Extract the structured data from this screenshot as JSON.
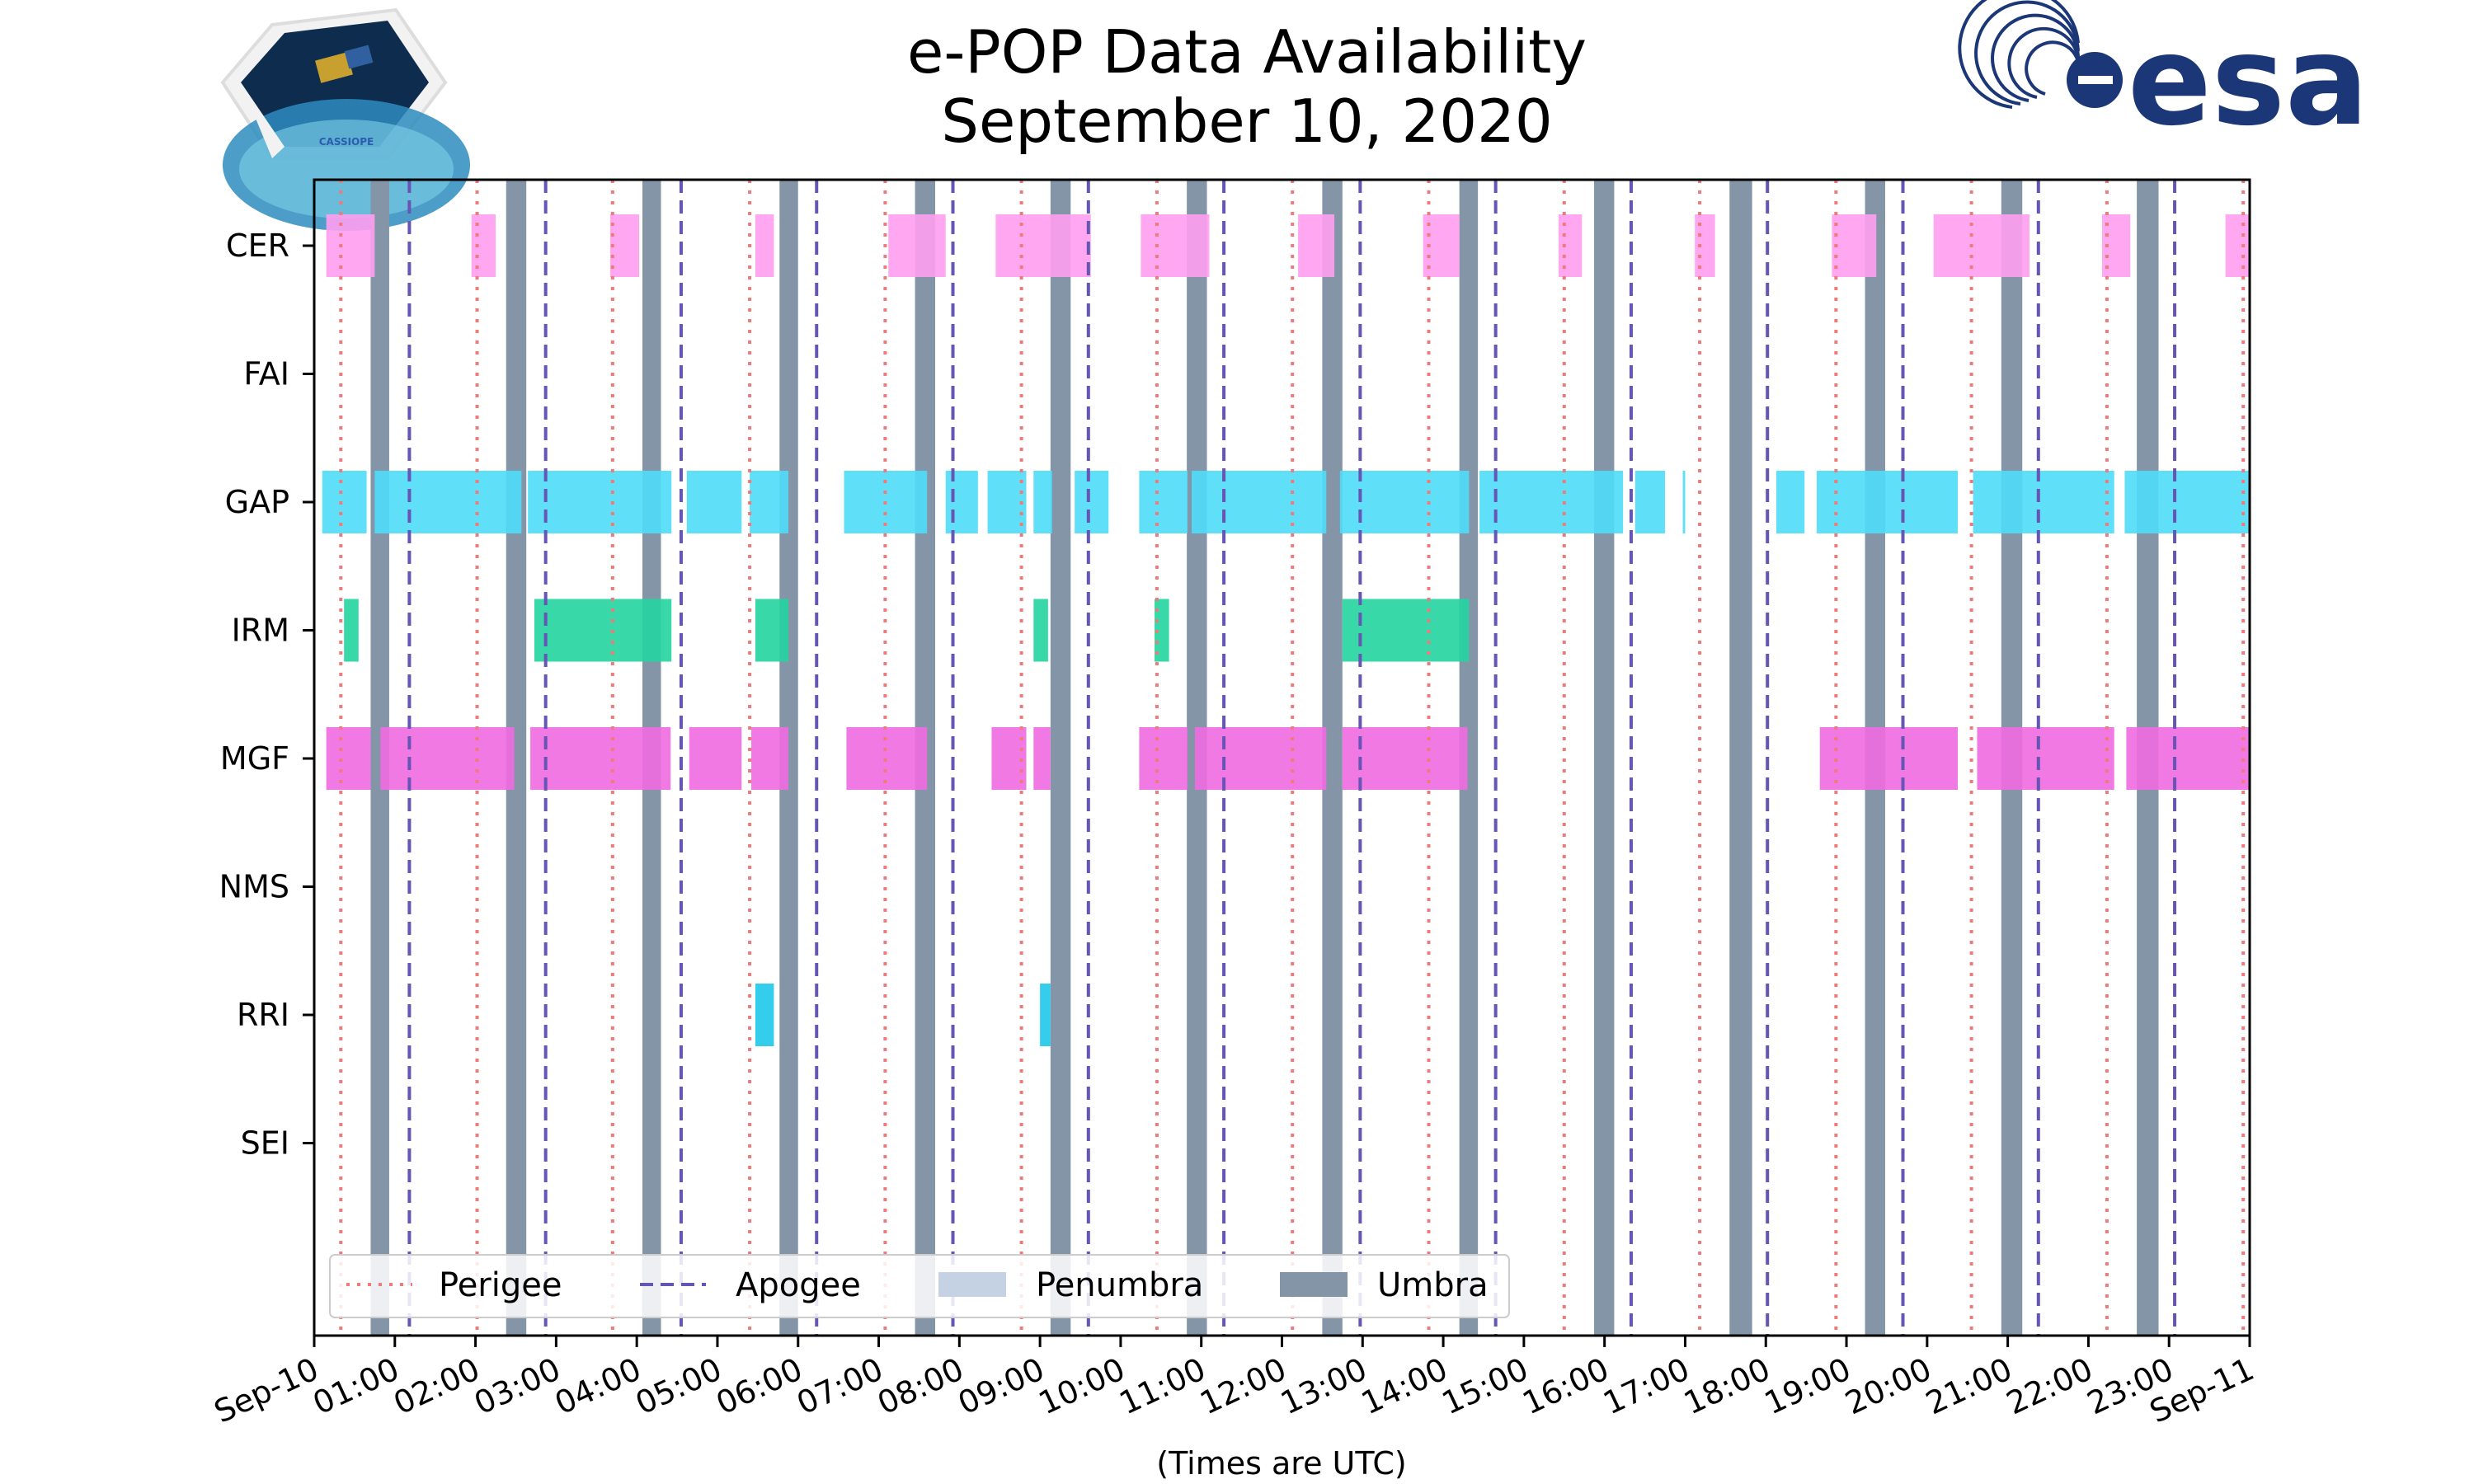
{
  "chart_data": {
    "type": "timeline",
    "title": [
      "e-POP Data Availability",
      "September 10, 2020"
    ],
    "xlabel": "(Times are UTC)",
    "x_ticks": [
      "Sep-10",
      "01:00",
      "02:00",
      "03:00",
      "04:00",
      "05:00",
      "06:00",
      "07:00",
      "08:00",
      "09:00",
      "10:00",
      "11:00",
      "12:00",
      "13:00",
      "14:00",
      "15:00",
      "16:00",
      "17:00",
      "18:00",
      "19:00",
      "20:00",
      "21:00",
      "22:00",
      "23:00",
      "Sep-11"
    ],
    "xlim_hours": [
      0,
      24
    ],
    "instruments": [
      "CER",
      "FAI",
      "GAP",
      "IRM",
      "MGF",
      "NMS",
      "RRI",
      "SEI"
    ],
    "perigee_hours": [
      0.33,
      2.02,
      3.7,
      5.4,
      7.08,
      8.77,
      10.45,
      12.13,
      13.82,
      15.5,
      17.18,
      18.87,
      20.55,
      22.23,
      23.92
    ],
    "apogee_hours": [
      1.18,
      2.87,
      4.55,
      6.23,
      7.92,
      9.6,
      11.28,
      12.97,
      14.65,
      16.33,
      18.02,
      19.7,
      21.38,
      23.07
    ],
    "umbra_hours": [
      [
        0.7,
        0.93
      ],
      [
        2.38,
        2.63
      ],
      [
        4.07,
        4.3
      ],
      [
        5.77,
        6.0
      ],
      [
        7.45,
        7.7
      ],
      [
        9.13,
        9.38
      ],
      [
        10.82,
        11.07
      ],
      [
        12.5,
        12.75
      ],
      [
        14.2,
        14.43
      ],
      [
        15.87,
        16.12
      ],
      [
        17.55,
        17.83
      ],
      [
        19.23,
        19.48
      ],
      [
        20.92,
        21.18
      ],
      [
        22.6,
        22.87
      ]
    ],
    "availability": {
      "CER": [
        [
          0.15,
          0.75
        ],
        [
          1.95,
          2.25
        ],
        [
          3.67,
          4.03
        ],
        [
          5.47,
          5.7
        ],
        [
          7.12,
          7.83
        ],
        [
          8.45,
          9.63
        ],
        [
          10.25,
          11.1
        ],
        [
          12.2,
          12.65
        ],
        [
          13.75,
          14.2
        ],
        [
          15.43,
          15.72
        ],
        [
          17.12,
          17.37
        ],
        [
          18.82,
          19.37
        ],
        [
          20.08,
          21.27
        ],
        [
          22.17,
          22.52
        ],
        [
          23.7,
          24.0
        ]
      ],
      "FAI": [],
      "GAP": [
        [
          0.1,
          0.65
        ],
        [
          0.75,
          2.57
        ],
        [
          2.65,
          4.43
        ],
        [
          4.62,
          5.3
        ],
        [
          5.4,
          5.88
        ],
        [
          6.57,
          7.6
        ],
        [
          7.83,
          8.23
        ],
        [
          8.35,
          8.83
        ],
        [
          8.92,
          9.15
        ],
        [
          9.43,
          9.85
        ],
        [
          10.23,
          10.83
        ],
        [
          10.88,
          12.55
        ],
        [
          12.72,
          14.32
        ],
        [
          14.45,
          16.23
        ],
        [
          16.38,
          16.75
        ],
        [
          16.97,
          17.0
        ],
        [
          18.13,
          18.48
        ],
        [
          18.63,
          20.38
        ],
        [
          20.57,
          22.32
        ],
        [
          22.45,
          24.0
        ]
      ],
      "IRM": [
        [
          0.37,
          0.55
        ],
        [
          2.73,
          4.43
        ],
        [
          5.47,
          5.88
        ],
        [
          8.92,
          9.1
        ],
        [
          10.42,
          10.6
        ],
        [
          12.75,
          14.32
        ]
      ],
      "MGF": [
        [
          0.15,
          0.7
        ],
        [
          0.82,
          2.48
        ],
        [
          2.68,
          4.42
        ],
        [
          4.65,
          5.3
        ],
        [
          5.42,
          5.88
        ],
        [
          6.6,
          7.6
        ],
        [
          8.4,
          8.83
        ],
        [
          8.92,
          9.13
        ],
        [
          10.23,
          10.83
        ],
        [
          10.92,
          12.55
        ],
        [
          12.75,
          14.3
        ],
        [
          18.67,
          20.38
        ],
        [
          20.62,
          22.32
        ],
        [
          22.47,
          24.0
        ]
      ],
      "NMS": [],
      "RRI": [
        [
          5.47,
          5.7
        ],
        [
          9.0,
          9.13
        ]
      ],
      "SEI": []
    },
    "colors": {
      "CER": "#ff9ef0",
      "GAP": "#4fdcf8",
      "IRM": "#23d4a0",
      "MGF": "#f06ae0",
      "RRI": "#1ec8ea",
      "perigee": "#f07a7a",
      "apogee": "#6655b5",
      "umbra": "#8595a8",
      "penumbra": "#c5d2e3"
    },
    "legend": {
      "position": "lower-left",
      "entries": [
        "Perigee",
        "Apogee",
        "Penumbra",
        "Umbra"
      ]
    }
  },
  "logos": {
    "left": "CASSIOPE",
    "right": "esa"
  }
}
